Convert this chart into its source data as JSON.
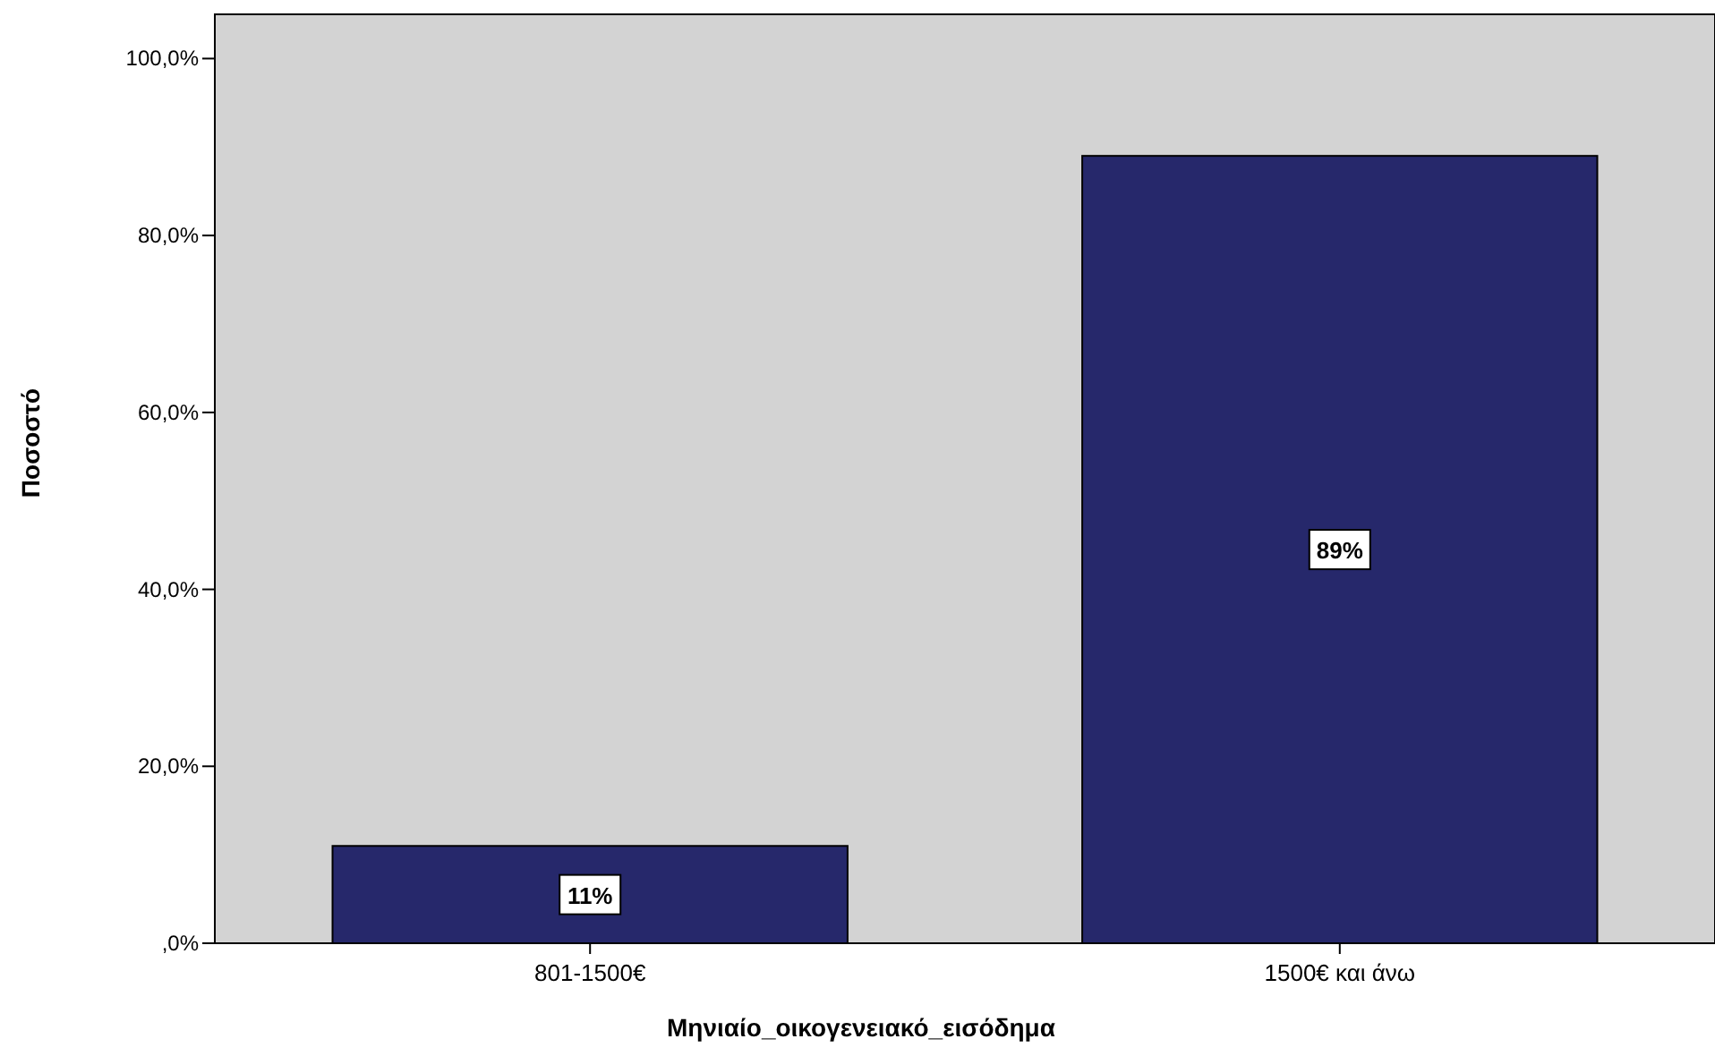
{
  "chart_data": {
    "type": "bar",
    "xlabel": "Μηνιαίο_οικογενειακό_εισόδημα",
    "ylabel": "Ποσοστό",
    "categories": [
      "801-1500€",
      "1500€ και άνω"
    ],
    "values": [
      11,
      89
    ],
    "value_labels": [
      "11%",
      "89%"
    ],
    "color": "#26286b",
    "ylim": [
      0,
      105
    ],
    "yticks": [
      {
        "value": 0,
        "label": ",0%"
      },
      {
        "value": 20,
        "label": "20,0%"
      },
      {
        "value": 40,
        "label": "40,0%"
      },
      {
        "value": 60,
        "label": "60,0%"
      },
      {
        "value": 80,
        "label": "80,0%"
      },
      {
        "value": 100,
        "label": "100,0%"
      }
    ],
    "grid": false
  }
}
